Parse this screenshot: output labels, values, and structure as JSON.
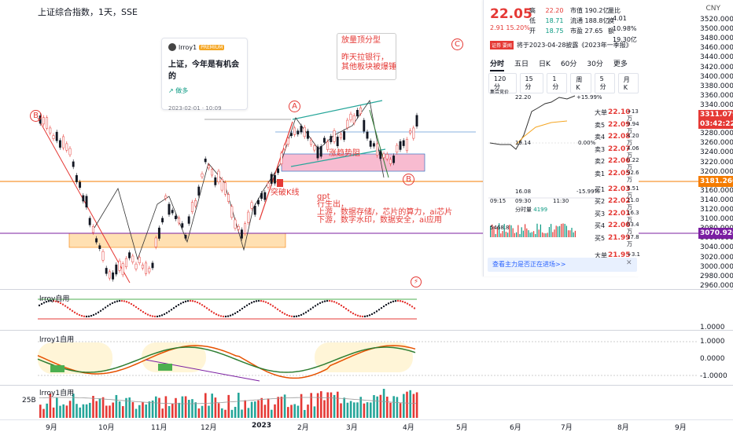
{
  "chart": {
    "title": "上证综合指数，1天，SSE",
    "currency": "CNY",
    "price_labels": [
      "3520.0000",
      "3500.0000",
      "3480.0000",
      "3460.0000",
      "3440.0000",
      "3420.0000",
      "3400.0000",
      "3380.0000",
      "3360.0000",
      "3340.0000",
      "3320.0000",
      "3300.0000",
      "3280.0000",
      "3260.0000",
      "3240.0000",
      "3220.0000",
      "3200.0000",
      "3180.0000",
      "3160.0000",
      "3140.0000",
      "3120.0000",
      "3100.0000",
      "3080.0000",
      "3060.0000",
      "3040.0000",
      "3020.0000",
      "3000.0000",
      "2980.0000",
      "2960.0000"
    ],
    "current_price_tag": "3311.0798",
    "current_time_tag": "03:42:22",
    "level_tag_1": "3181.2662",
    "level_tag_2": "3070.9265",
    "pane2_labels": [
      "1.0000",
      "0.0000",
      "-1.0000"
    ],
    "pane1_label": "1.0000",
    "volume_label": "25B",
    "time_labels": [
      "9月",
      "10月",
      "11月",
      "12月",
      "2023",
      "2月",
      "3月",
      "4月",
      "5月",
      "6月",
      "7月",
      "8月",
      "9月"
    ]
  },
  "indicators": {
    "pane1_name": "lrroy自用",
    "pane2_name": "lrroy1自用",
    "pane3_name": "lrroy1自用"
  },
  "annotations": {
    "top_note_1": "放量顶分型",
    "top_note_2": "昨天拉银行，",
    "top_note_3": "其他板块被爆锤",
    "circle_a": "A",
    "circle_b": "B",
    "circle_c": "C",
    "circle_left": "B",
    "breakout": "突破K线",
    "zone_label": "涨趋势阻",
    "gpt_1": "gpt",
    "gpt_2": "行生出，",
    "gpt_3": "上游，数据存储/，芯片的算力，ai芯片",
    "gpt_4": "下游，数字水印，数据安全，ai应用"
  },
  "idea": {
    "author": "lrroy1",
    "premium": "PREMIUM",
    "title": "上证，今年是有机会的",
    "tag": "做多",
    "date": "2023-02-01 · 10:09"
  },
  "quote": {
    "price": "22.05",
    "change": "2.91",
    "change_pct": "15.20%",
    "high_label": "高",
    "high": "22.20",
    "low_label": "低",
    "low": "18.71",
    "open_label": "开",
    "open": "18.75",
    "mcap_label": "市值",
    "mcap": "190.2亿",
    "float_label": "流通",
    "float": "188.8亿",
    "pe_label": "市盈",
    "pe": "27.65",
    "ratio_label": "量比",
    "ratio": "4.01",
    "turnover_label": "换",
    "turnover": "10.98%",
    "amount_label": "额",
    "amount": "19.30亿",
    "news_logo": "证券 要闻",
    "news": "将于2023-04-28披露《2023年一季报》",
    "tabs": [
      "分时",
      "五日",
      "日K",
      "60分",
      "30分",
      "更多"
    ],
    "subtabs": [
      "120分",
      "15分",
      "1分",
      "周K",
      "5分",
      "月K"
    ],
    "intraday_top": "22.20",
    "intraday_pct": "+15.99%",
    "intraday_bottom": "16.08",
    "intraday_bottom_pct": "-15.99%",
    "intraday_mid_pct": "0.00%",
    "intraday_preclose": "19.14",
    "time_start": "09:15",
    "time_mid": "09:30",
    "time_end": "11:30",
    "vol_label": "分时量",
    "vol_val": "4199",
    "vol_amount": "5468.8",
    "bottom_button": "查看主力是否正在进场>>"
  },
  "orderbook": [
    {
      "label": "大单",
      "price": "22.10",
      "vol": "+13万"
    },
    {
      "label": "卖5",
      "price": "22.09",
      "vol": "9.94万"
    },
    {
      "label": "卖4",
      "price": "22.08",
      "vol": "4.20万"
    },
    {
      "label": "卖3",
      "price": "22.07",
      "vol": "4.06万"
    },
    {
      "label": "卖2",
      "price": "22.06",
      "vol": "0.22万"
    },
    {
      "label": "卖1",
      "price": "22.05",
      "vol": "92.6万"
    },
    {
      "label": "买1",
      "price": "22.03",
      "vol": "5.51万"
    },
    {
      "label": "买2",
      "price": "22.02",
      "vol": "11.0万"
    },
    {
      "label": "买3",
      "price": "22.01",
      "vol": "16.3万"
    },
    {
      "label": "买4",
      "price": "22.00",
      "vol": "63.4万"
    },
    {
      "label": "买5",
      "price": "21.99",
      "vol": "17.8万"
    },
    {
      "label": "大单",
      "price": "21.95",
      "vol": "+3.1万"
    }
  ],
  "colors": {
    "up": "#e53935",
    "down": "#089981",
    "level_orange": "#f57c00",
    "level_purple": "#7b1fa2",
    "zone_pink": "#f8bbd0",
    "zone_orange": "#ffe0b2"
  }
}
